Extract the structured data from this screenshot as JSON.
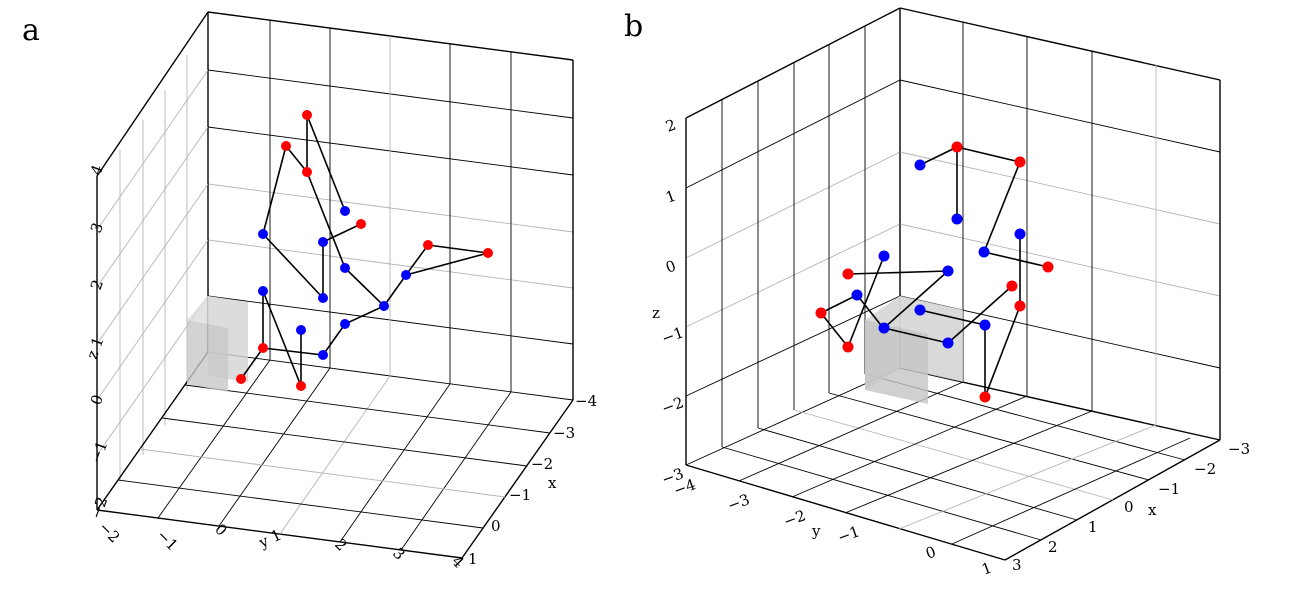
{
  "figure": {
    "panels": [
      {
        "letter": "a",
        "axes": {
          "xlabel": "x",
          "ylabel": "y",
          "zlabel": "z"
        },
        "ticks": {
          "x": [
            "−4",
            "−3",
            "−2",
            "−1",
            "0",
            "1"
          ],
          "y": [
            "−2",
            "−1",
            "0",
            "y 1",
            "2",
            "3",
            "4"
          ],
          "z": [
            "4",
            "3",
            "2",
            "z 1",
            "0",
            "−1",
            "−2"
          ]
        }
      },
      {
        "letter": "b",
        "axes": {
          "xlabel": "x",
          "ylabel": "y",
          "zlabel": "z"
        },
        "ticks": {
          "x": [
            "−3",
            "−2",
            "−1",
            "0",
            "1",
            "2",
            "3"
          ],
          "y": [
            "−4",
            "−3",
            "−2",
            "−1",
            "0",
            "1"
          ],
          "z": [
            "2",
            "1",
            "0",
            "−1",
            "−2",
            "−3"
          ]
        }
      }
    ]
  },
  "chart_data": [
    {
      "type": "scatter",
      "panel": "a",
      "title": "",
      "xlabel": "x",
      "ylabel": "y",
      "zlabel": "z",
      "xlim": [
        -4,
        1
      ],
      "ylim": [
        -2,
        4
      ],
      "zlim": [
        -2,
        4
      ],
      "series": [
        {
          "name": "",
          "color": "#ff0000"
        },
        {
          "name": "",
          "color": "#0000ff"
        }
      ],
      "legend": "none",
      "grid": true
    },
    {
      "type": "scatter",
      "panel": "b",
      "title": "",
      "xlabel": "x",
      "ylabel": "y",
      "zlabel": "z",
      "xlim": [
        -3,
        3
      ],
      "ylim": [
        -4,
        1
      ],
      "zlim": [
        -3,
        2
      ],
      "series": [
        {
          "name": "",
          "color": "#ff0000"
        },
        {
          "name": "",
          "color": "#0000ff"
        }
      ],
      "legend": "none",
      "grid": true
    }
  ],
  "colors": {
    "red": "#ff0000",
    "blue": "#0000ff",
    "box": "#d3d3d3"
  }
}
